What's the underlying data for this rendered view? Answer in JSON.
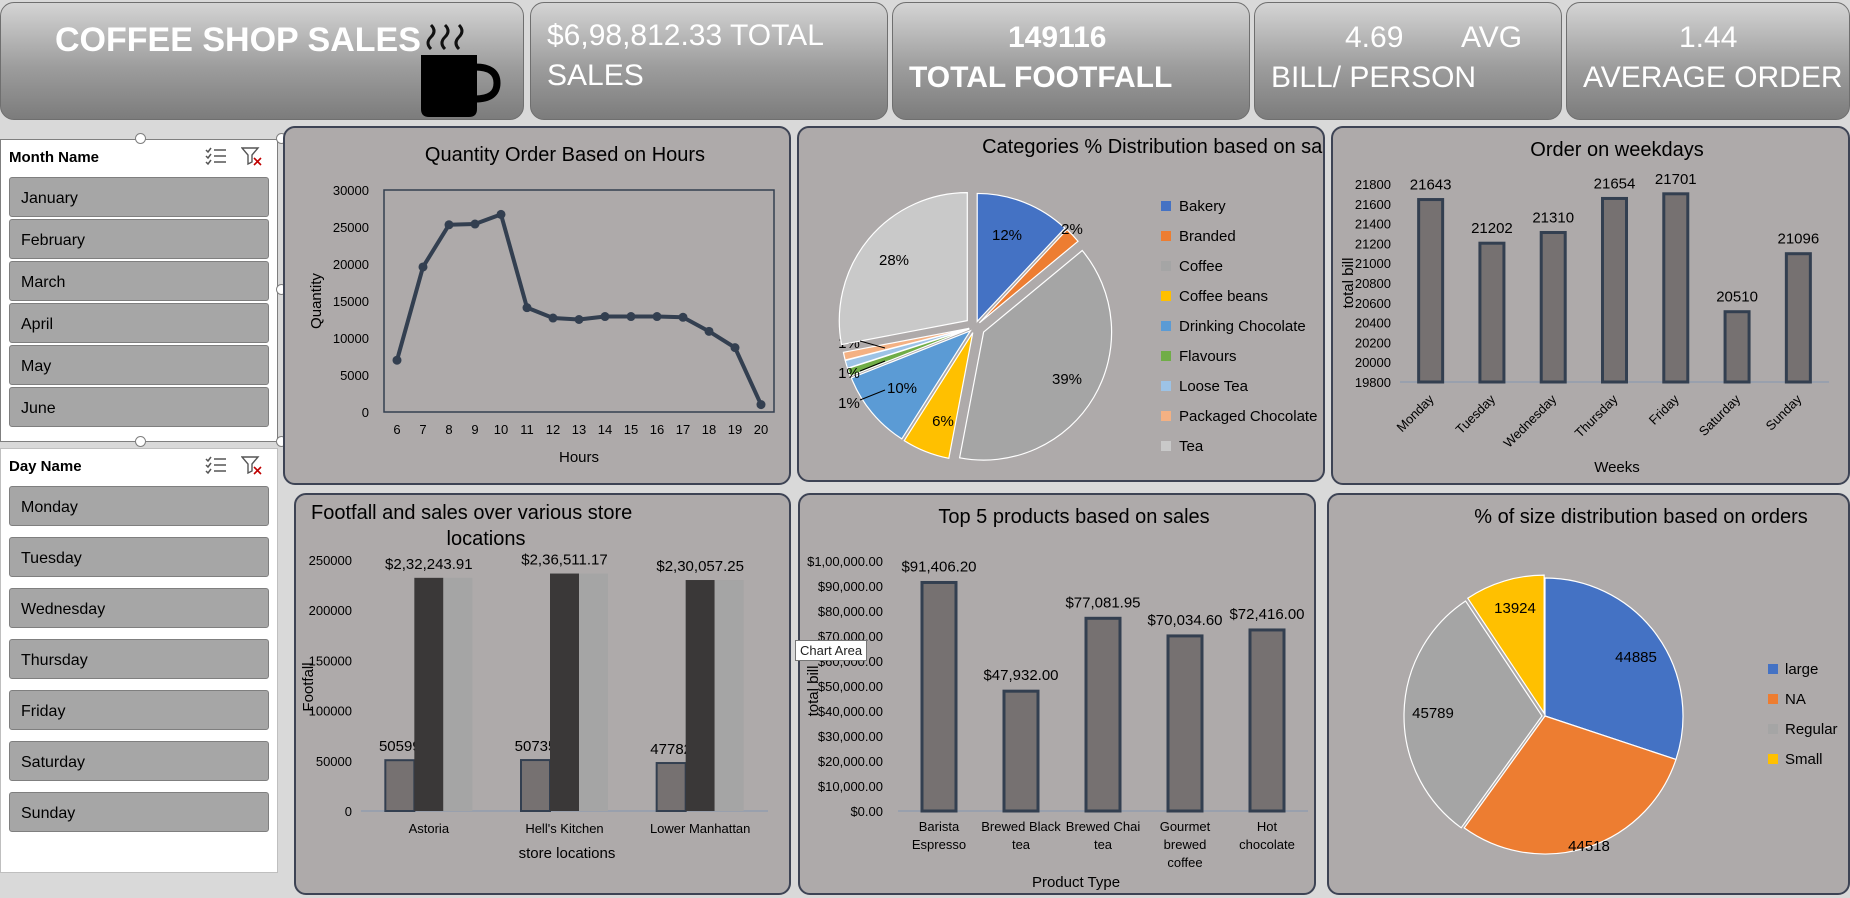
{
  "kpis": {
    "title": "COFFEE SHOP SALES",
    "total_sales_value": "$6,98,812.33",
    "total_sales_label_1": "TOTAL",
    "total_sales_label_2": "SALES",
    "footfall_value": "149116",
    "footfall_label": "TOTAL FOOTFALL",
    "avg_bill_value": "4.69",
    "avg_bill_label_1": "AVG",
    "avg_bill_label_2": "BILL/ PERSON",
    "avg_order_value": "1.44",
    "avg_order_label": "AVERAGE ORDER"
  },
  "slicers": {
    "month": {
      "title": "Month Name",
      "items": [
        "January",
        "February",
        "March",
        "April",
        "May",
        "June"
      ]
    },
    "day": {
      "title": "Day Name",
      "items": [
        "Monday",
        "Tuesday",
        "Wednesday",
        "Thursday",
        "Friday",
        "Saturday",
        "Sunday"
      ]
    }
  },
  "tooltip": "Chart Area",
  "colors": {
    "panel": "#aeaaaa",
    "border": "#3d4354",
    "bar": "#767171",
    "dark_bar": "#3a3838",
    "light_bar": "#a5a5a5",
    "line": "#333f50"
  },
  "chart_data": [
    {
      "type": "line",
      "title": "Quantity Order Based on Hours",
      "xlabel": "Hours",
      "ylabel": "Quantity",
      "x": [
        6,
        7,
        8,
        9,
        10,
        11,
        12,
        13,
        14,
        15,
        16,
        17,
        18,
        19,
        20
      ],
      "y": [
        7000,
        19600,
        25300,
        25400,
        26700,
        14100,
        12700,
        12500,
        12900,
        12900,
        12900,
        12800,
        10900,
        8700,
        1000
      ],
      "ylim": [
        0,
        30000
      ],
      "yticks": [
        "0",
        "5000",
        "10000",
        "15000",
        "20000",
        "25000",
        "30000"
      ]
    },
    {
      "type": "pie",
      "title": "Categories %  Distribution based on sales",
      "categories": [
        "Bakery",
        "Branded",
        "Coffee",
        "Coffee beans",
        "Drinking Chocolate",
        "Flavours",
        "Loose Tea",
        "Packaged Chocolate",
        "Tea"
      ],
      "values": [
        12,
        2,
        39,
        6,
        10,
        1,
        1,
        1,
        28
      ],
      "labels": [
        "12%",
        "2%",
        "39%",
        "6%",
        "10%",
        "1%",
        "1%",
        "1%",
        "28%"
      ],
      "colors": [
        "#4472c4",
        "#ed7d31",
        "#a5a5a5",
        "#ffc000",
        "#5b9bd5",
        "#70ad47",
        "#9dc3e6",
        "#f4b183",
        "#c9c9c9"
      ],
      "legend": "right"
    },
    {
      "type": "bar",
      "title": "Order on weekdays",
      "xlabel": "Weeks",
      "ylabel": "total bill",
      "categories": [
        "Monday",
        "Tuesday",
        "Wednesday",
        "Thursday",
        "Friday",
        "Saturday",
        "Sunday"
      ],
      "values": [
        21643,
        21202,
        21310,
        21654,
        21701,
        20510,
        21096
      ],
      "ylim": [
        19800,
        21800
      ],
      "yticks": [
        "19800",
        "20000",
        "20200",
        "20400",
        "20600",
        "20800",
        "21000",
        "21200",
        "21400",
        "21600",
        "21800"
      ]
    },
    {
      "type": "bar",
      "title": "Footfall and sales over various store locations",
      "xlabel": "store locations",
      "ylabel": "Footfall",
      "categories": [
        "Astoria",
        "Hell's Kitchen",
        "Lower Manhattan"
      ],
      "series": [
        {
          "values": [
            50599,
            50735,
            47782
          ],
          "labels": [
            "50599",
            "50735",
            "47782"
          ]
        },
        {
          "values": [
            232243.91,
            236511.17,
            230057.25
          ],
          "labels": [
            "$2,32,243.91",
            "$2,36,511.17",
            "$2,30,057.25"
          ]
        },
        {
          "values": [
            232243.91,
            236511.17,
            230057.25
          ]
        }
      ],
      "ylim": [
        0,
        250000
      ],
      "yticks": [
        "0",
        "50000",
        "100000",
        "150000",
        "200000",
        "250000"
      ]
    },
    {
      "type": "bar",
      "title": "Top 5 products based on sales",
      "xlabel": "Product Type",
      "ylabel": "total bill",
      "categories": [
        [
          "Barista",
          "Espresso"
        ],
        [
          "Brewed Black",
          "tea"
        ],
        [
          "Brewed Chai",
          "tea"
        ],
        [
          "Gourmet",
          "brewed",
          "coffee"
        ],
        [
          "Hot",
          "chocolate"
        ]
      ],
      "values": [
        91406.2,
        47932.0,
        77081.95,
        70034.6,
        72416.0
      ],
      "labels": [
        "$91,406.20",
        "$47,932.00",
        "$77,081.95",
        "$70,034.60",
        "$72,416.00"
      ],
      "ylim": [
        0,
        100000
      ],
      "yticks": [
        "$0.00",
        "$10,000.00",
        "$20,000.00",
        "$30,000.00",
        "$40,000.00",
        "$50,000.00",
        "$60,000.00",
        "$70,000.00",
        "$80,000.00",
        "$90,000.00",
        "$1,00,000.00"
      ]
    },
    {
      "type": "pie",
      "title": "% of size distribution based on orders",
      "categories": [
        "large",
        "NA",
        "Regular",
        "Small"
      ],
      "values": [
        44885,
        44518,
        45789,
        13924
      ],
      "labels": [
        "44885",
        "44518",
        "45789",
        "13924"
      ],
      "colors": [
        "#4472c4",
        "#ed7d31",
        "#a5a5a5",
        "#ffc000"
      ],
      "legend": "right"
    }
  ]
}
